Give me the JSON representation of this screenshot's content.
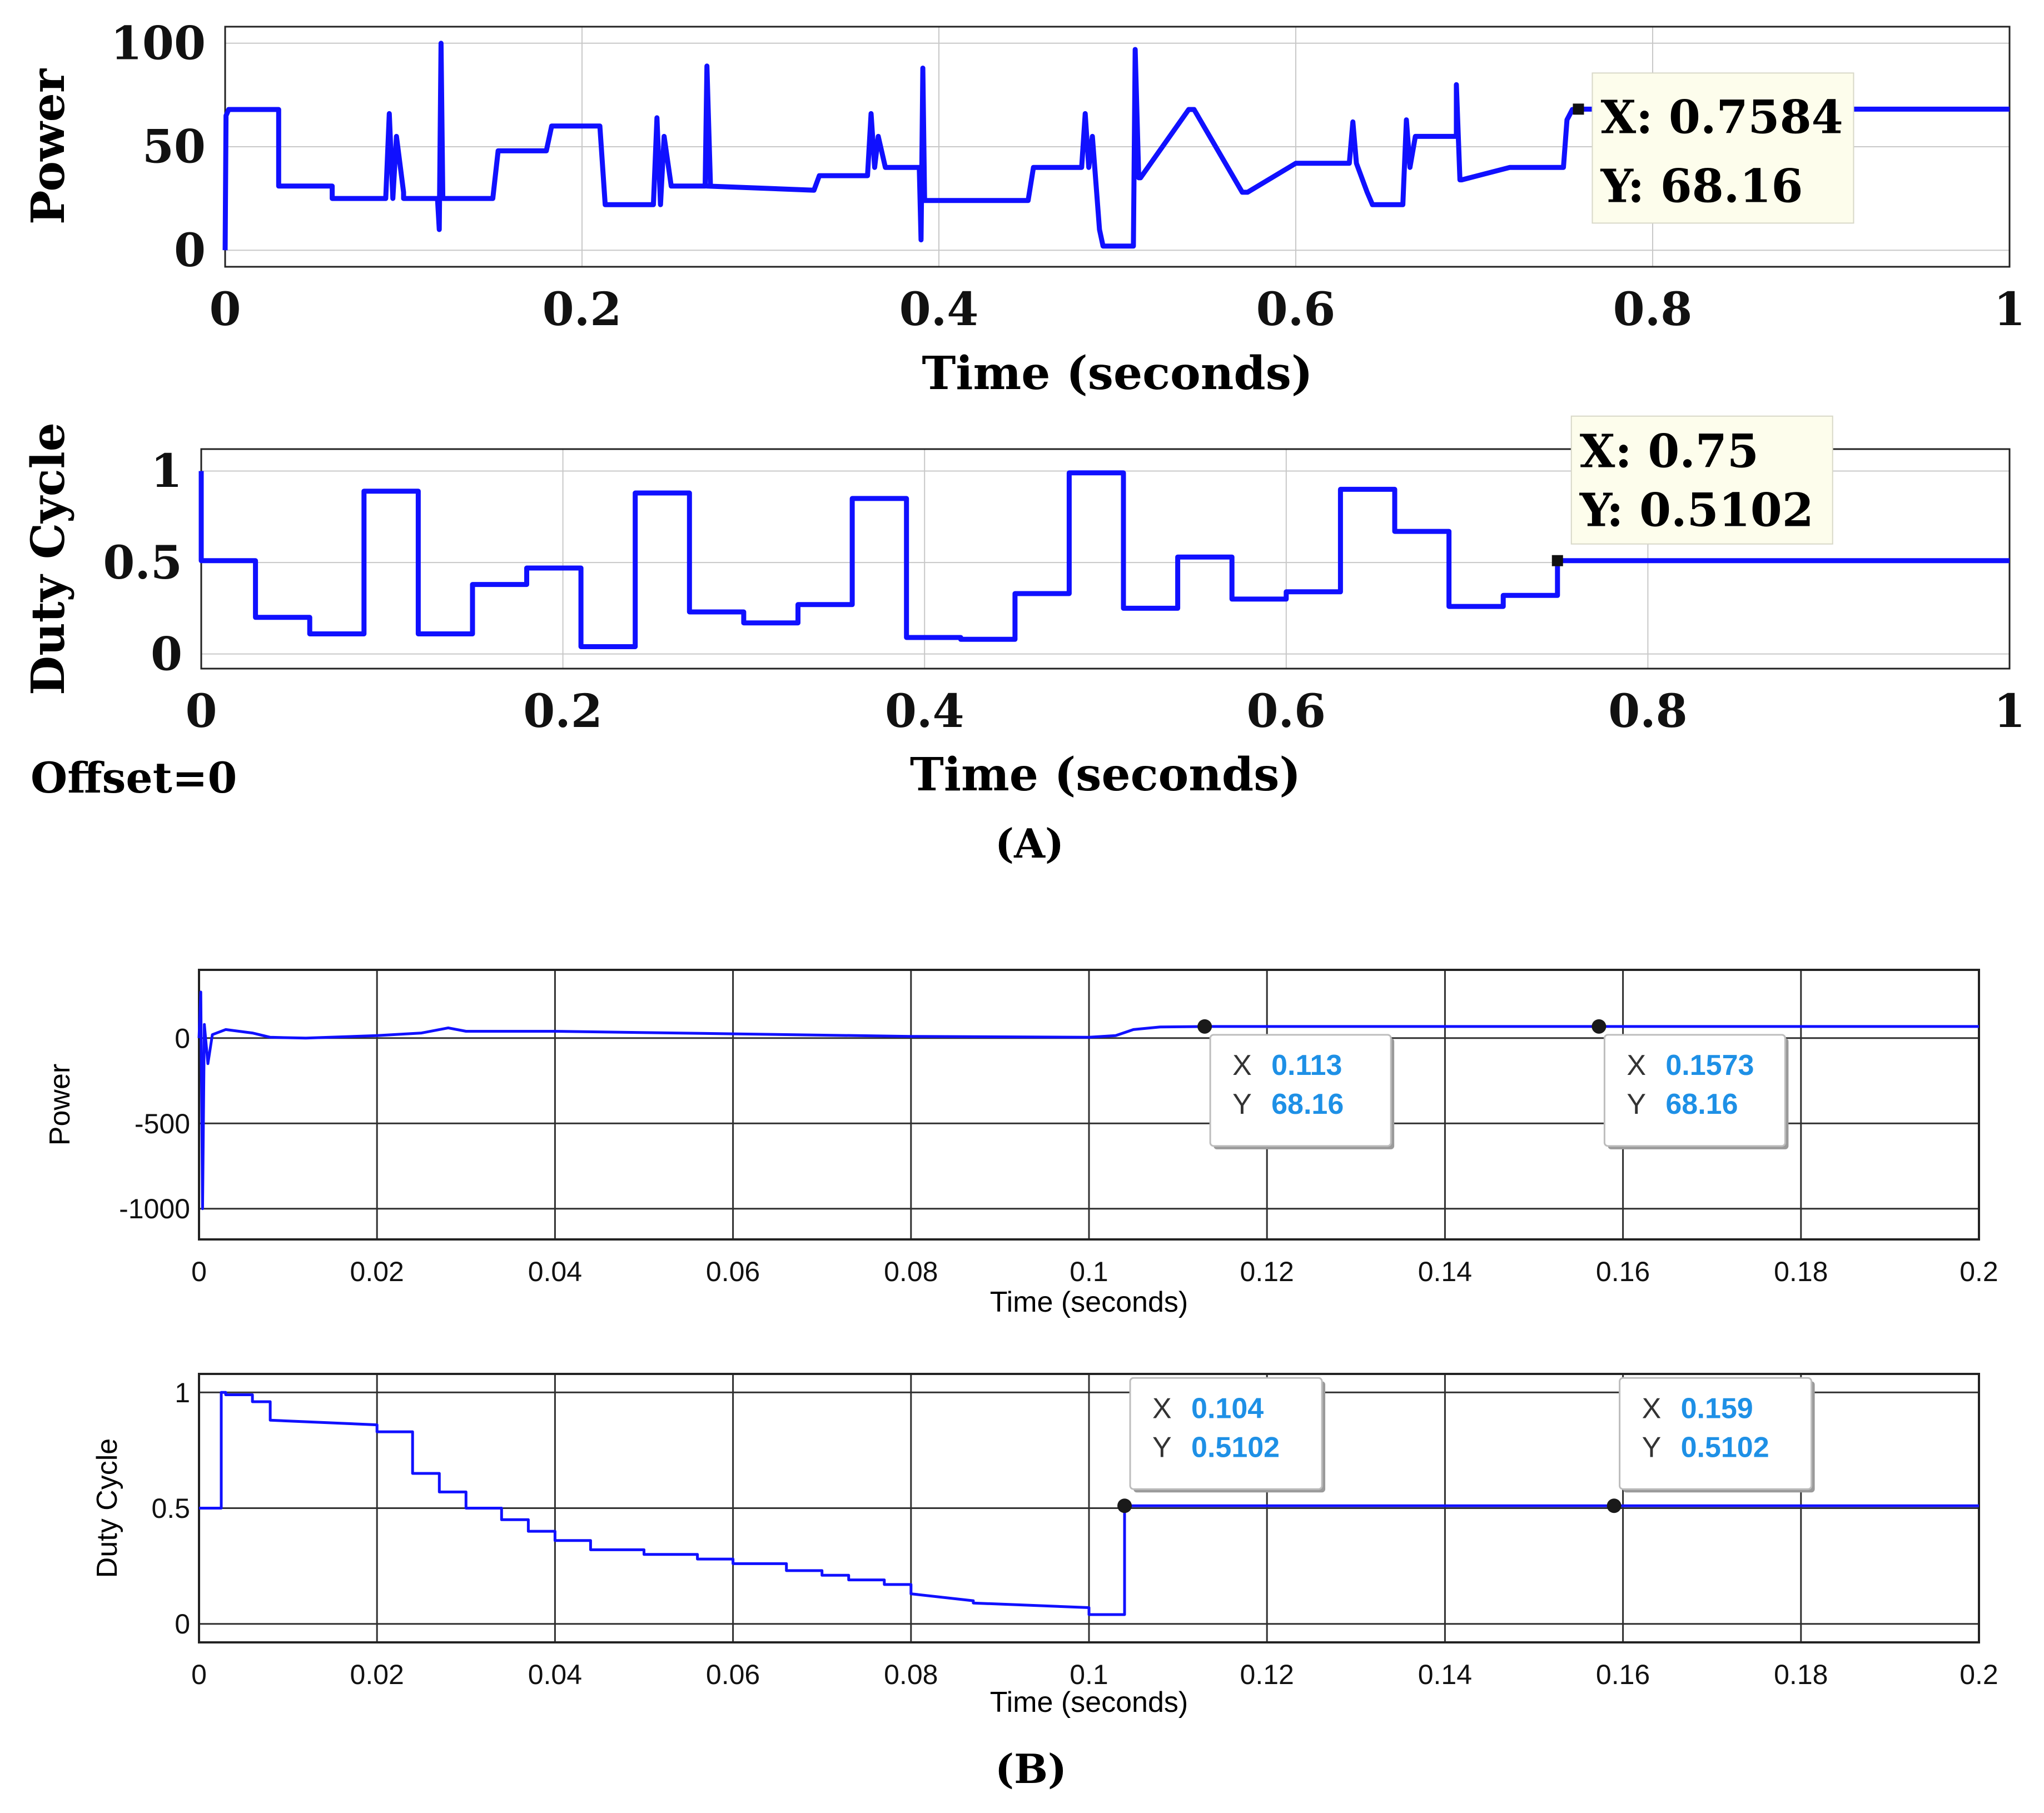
{
  "figure": {
    "panel_a_label": "(A)",
    "panel_b_label": "(B)",
    "offset_note": "Offset=0"
  },
  "colors": {
    "signal": "#1010ff",
    "grid": "#c8c8c8",
    "tip_bg_a": "#fdfdec",
    "tip_value_b": "#1e90e6",
    "axis": "#222222"
  },
  "chart_data": [
    {
      "id": "A-power",
      "type": "line",
      "title": "",
      "xlabel": "Time (seconds)",
      "ylabel": "Power",
      "xlim": [
        0,
        1
      ],
      "ylim": [
        -8,
        108
      ],
      "xticks": [
        0,
        0.2,
        0.4,
        0.6,
        0.8,
        1
      ],
      "xtick_labels": [
        "0",
        "0.2",
        "0.4",
        "0.6",
        "0.8",
        "1"
      ],
      "yticks": [
        0,
        50,
        100
      ],
      "ytick_labels": [
        "0",
        "50",
        "100"
      ],
      "grid": true,
      "series": [
        {
          "name": "Power",
          "x": [
            0,
            0.0005,
            0.002,
            0.03,
            0.03,
            0.06,
            0.06,
            0.09,
            0.092,
            0.094,
            0.096,
            0.1,
            0.1,
            0.119,
            0.12,
            0.121,
            0.122,
            0.15,
            0.153,
            0.18,
            0.183,
            0.21,
            0.213,
            0.24,
            0.242,
            0.244,
            0.246,
            0.25,
            0.25,
            0.269,
            0.27,
            0.272,
            0.27,
            0.33,
            0.333,
            0.36,
            0.362,
            0.364,
            0.366,
            0.37,
            0.37,
            0.389,
            0.39,
            0.391,
            0.392,
            0.45,
            0.453,
            0.48,
            0.482,
            0.484,
            0.486,
            0.49,
            0.492,
            0.509,
            0.51,
            0.512,
            0.513,
            0.54,
            0.543,
            0.57,
            0.573,
            0.6,
            0.63,
            0.632,
            0.634,
            0.64,
            0.643,
            0.66,
            0.662,
            0.664,
            0.667,
            0.69,
            0.69,
            0.692,
            0.693,
            0.72,
            0.723,
            0.75,
            0.752,
            0.755,
            0.7584,
            1
          ],
          "y": [
            0,
            65,
            68,
            68,
            31,
            31,
            25,
            25,
            66,
            25,
            55,
            28,
            25,
            25,
            10,
            100,
            25,
            25,
            48,
            48,
            60,
            60,
            22,
            22,
            64,
            22,
            55,
            31,
            31,
            31,
            89,
            31,
            31,
            29,
            36,
            36,
            66,
            40,
            55,
            40,
            40,
            40,
            5,
            88,
            24,
            24,
            40,
            40,
            66,
            40,
            55,
            10,
            2,
            2,
            97,
            35,
            35,
            68,
            68,
            28,
            28,
            42,
            42,
            62,
            42,
            28,
            22,
            22,
            63,
            40,
            55,
            55,
            80,
            34,
            34,
            40,
            40,
            40,
            63,
            68,
            68.16,
            68.16
          ]
        }
      ],
      "annotations": [
        {
          "type": "datatip",
          "x": 0.7584,
          "y": 68.16,
          "x_text": "X: 0.7584",
          "y_text": "Y: 68.16"
        }
      ]
    },
    {
      "id": "A-duty",
      "type": "line",
      "title": "",
      "xlabel": "Time (seconds)",
      "ylabel": "Duty Cycle",
      "xlim": [
        0,
        1
      ],
      "ylim": [
        -0.08,
        1.12
      ],
      "xticks": [
        0,
        0.2,
        0.4,
        0.6,
        0.8,
        1
      ],
      "xtick_labels": [
        "0",
        "0.2",
        "0.4",
        "0.6",
        "0.8",
        "1"
      ],
      "yticks": [
        0,
        0.5,
        1
      ],
      "ytick_labels": [
        "0",
        "0.5",
        "1"
      ],
      "grid": true,
      "series": [
        {
          "name": "Duty Cycle",
          "x": [
            0,
            0,
            0.03,
            0.03,
            0.06,
            0.06,
            0.09,
            0.09,
            0.12,
            0.12,
            0.15,
            0.15,
            0.18,
            0.18,
            0.21,
            0.21,
            0.24,
            0.24,
            0.27,
            0.27,
            0.3,
            0.3,
            0.33,
            0.33,
            0.36,
            0.36,
            0.39,
            0.39,
            0.42,
            0.42,
            0.45,
            0.45,
            0.48,
            0.48,
            0.51,
            0.51,
            0.54,
            0.54,
            0.57,
            0.57,
            0.6,
            0.6,
            0.63,
            0.63,
            0.66,
            0.66,
            0.69,
            0.69,
            0.72,
            0.72,
            0.75,
            0.75,
            1
          ],
          "y": [
            1,
            0.51,
            0.51,
            0.2,
            0.2,
            0.11,
            0.11,
            0.89,
            0.89,
            0.11,
            0.11,
            0.38,
            0.38,
            0.47,
            0.47,
            0.04,
            0.04,
            0.88,
            0.88,
            0.23,
            0.23,
            0.17,
            0.17,
            0.27,
            0.27,
            0.85,
            0.85,
            0.09,
            0.09,
            0.08,
            0.08,
            0.33,
            0.33,
            0.99,
            0.99,
            0.25,
            0.25,
            0.53,
            0.53,
            0.3,
            0.3,
            0.34,
            0.34,
            0.9,
            0.9,
            0.67,
            0.67,
            0.26,
            0.26,
            0.32,
            0.32,
            0.5102,
            0.5102
          ]
        }
      ],
      "annotations": [
        {
          "type": "datatip",
          "x": 0.75,
          "y": 0.5102,
          "x_text": "X: 0.75",
          "y_text": "Y: 0.5102"
        }
      ]
    },
    {
      "id": "B-power",
      "type": "line",
      "title": "",
      "xlabel": "Time (seconds)",
      "ylabel": "Power",
      "xlim": [
        0,
        0.2
      ],
      "ylim": [
        -1180,
        400
      ],
      "xticks": [
        0,
        0.02,
        0.04,
        0.06,
        0.08,
        0.1,
        0.12,
        0.14,
        0.16,
        0.18,
        0.2
      ],
      "xtick_labels": [
        "0",
        "0.02",
        "0.04",
        "0.06",
        "0.08",
        "0.1",
        "0.12",
        "0.14",
        "0.16",
        "0.18",
        "0.2"
      ],
      "yticks": [
        -1000,
        -500,
        0
      ],
      "ytick_labels": [
        "-1000",
        "-500",
        "0"
      ],
      "grid": true,
      "series": [
        {
          "name": "Power",
          "x": [
            0,
            0.0002,
            0.0004,
            0.0006,
            0.001,
            0.0015,
            0.003,
            0.006,
            0.008,
            0.012,
            0.02,
            0.025,
            0.028,
            0.03,
            0.04,
            0.06,
            0.08,
            0.1,
            0.103,
            0.105,
            0.108,
            0.113,
            0.1573,
            0.2
          ],
          "y": [
            0,
            270,
            -1000,
            80,
            -150,
            20,
            50,
            30,
            5,
            0,
            15,
            30,
            60,
            40,
            40,
            25,
            10,
            5,
            15,
            50,
            65,
            68.16,
            68.16,
            68.16
          ]
        }
      ],
      "annotations": [
        {
          "type": "datatip",
          "x": 0.113,
          "y": 68.16,
          "x_label": "X",
          "x_value": "0.113",
          "y_label": "Y",
          "y_value": "68.16"
        },
        {
          "type": "datatip",
          "x": 0.1573,
          "y": 68.16,
          "x_label": "X",
          "x_value": "0.1573",
          "y_label": "Y",
          "y_value": "68.16"
        }
      ]
    },
    {
      "id": "B-duty",
      "type": "line",
      "title": "",
      "xlabel": "Time (seconds)",
      "ylabel": "Duty Cycle",
      "xlim": [
        0,
        0.2
      ],
      "ylim": [
        -0.08,
        1.08
      ],
      "xticks": [
        0,
        0.02,
        0.04,
        0.06,
        0.08,
        0.1,
        0.12,
        0.14,
        0.16,
        0.18,
        0.2
      ],
      "xtick_labels": [
        "0",
        "0.02",
        "0.04",
        "0.06",
        "0.08",
        "0.1",
        "0.12",
        "0.14",
        "0.16",
        "0.18",
        "0.2"
      ],
      "yticks": [
        0,
        0.5,
        1
      ],
      "ytick_labels": [
        "0",
        "0.5",
        "1"
      ],
      "grid": true,
      "series": [
        {
          "name": "Duty Cycle",
          "x": [
            0,
            0.0025,
            0.0025,
            0.003,
            0.003,
            0.006,
            0.006,
            0.008,
            0.008,
            0.02,
            0.02,
            0.024,
            0.024,
            0.027,
            0.027,
            0.03,
            0.03,
            0.034,
            0.034,
            0.037,
            0.037,
            0.04,
            0.04,
            0.044,
            0.044,
            0.05,
            0.05,
            0.056,
            0.056,
            0.06,
            0.06,
            0.066,
            0.066,
            0.07,
            0.07,
            0.073,
            0.073,
            0.077,
            0.077,
            0.08,
            0.08,
            0.087,
            0.087,
            0.1,
            0.1,
            0.104,
            0.104,
            0.2
          ],
          "y": [
            0.5,
            0.5,
            1,
            1,
            0.99,
            0.99,
            0.96,
            0.96,
            0.88,
            0.86,
            0.83,
            0.83,
            0.65,
            0.65,
            0.57,
            0.57,
            0.5,
            0.5,
            0.45,
            0.45,
            0.4,
            0.4,
            0.36,
            0.36,
            0.32,
            0.32,
            0.3,
            0.3,
            0.28,
            0.28,
            0.26,
            0.26,
            0.23,
            0.23,
            0.21,
            0.21,
            0.19,
            0.19,
            0.17,
            0.17,
            0.13,
            0.1,
            0.09,
            0.07,
            0.04,
            0.04,
            0.5102,
            0.5102
          ]
        }
      ],
      "annotations": [
        {
          "type": "datatip",
          "x": 0.104,
          "y": 0.5102,
          "x_label": "X",
          "x_value": "0.104",
          "y_label": "Y",
          "y_value": "0.5102"
        },
        {
          "type": "datatip",
          "x": 0.159,
          "y": 0.5102,
          "x_label": "X",
          "x_value": "0.159",
          "y_label": "Y",
          "y_value": "0.5102"
        }
      ]
    }
  ]
}
